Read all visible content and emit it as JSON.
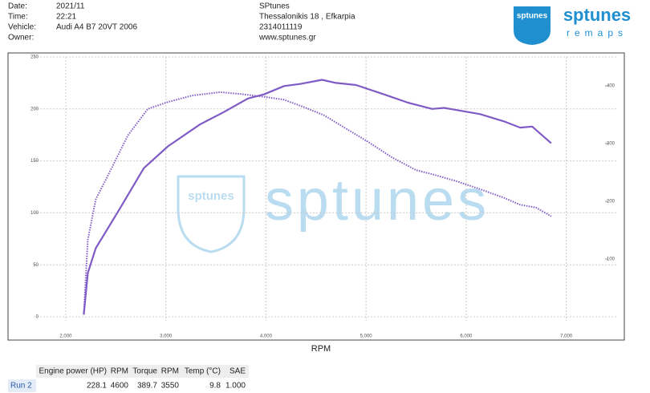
{
  "header": {
    "labels": [
      "Date:",
      "Time:",
      "Vehicle:",
      "Owner:"
    ],
    "values": [
      "2021/11",
      "22:21",
      "Audi A4 B7 20VT 2006"
    ],
    "company": [
      "SPtunes",
      "Thessalonikis 18 , Efkarpia",
      "2314011119",
      "www.sptunes.gr"
    ]
  },
  "logo": {
    "name": "sptunes",
    "tagline": "remaps"
  },
  "chart_data": {
    "type": "line",
    "x_label": "RPM",
    "xlim": [
      1680,
      7500
    ],
    "xticks": [
      {
        "value": 2000,
        "label": "2,000"
      },
      {
        "value": 3000,
        "label": "3,000"
      },
      {
        "value": 4000,
        "label": "4,000"
      },
      {
        "value": 5000,
        "label": "5,000"
      },
      {
        "value": 6000,
        "label": "6,000"
      },
      {
        "value": 7000,
        "label": "7,000"
      }
    ],
    "ylim": [
      0,
      250
    ],
    "yticks": [
      0,
      50,
      100,
      150,
      200,
      250
    ],
    "y2lim": [
      0,
      450
    ],
    "y2ticks": [
      100,
      200,
      300,
      400
    ],
    "grid": true,
    "series": [
      {
        "color": "#7f5bc6",
        "style": "solid",
        "x": [
          2180,
          2220,
          2300,
          2540,
          2780,
          3020,
          3340,
          3580,
          3820,
          3980,
          4180,
          4340,
          4560,
          4700,
          4900,
          5180,
          5420,
          5660,
          5780,
          5900,
          6140,
          6380,
          6540,
          6660,
          6850
        ],
        "values": [
          2,
          42,
          66,
          104,
          143,
          164,
          185,
          197,
          210,
          214,
          222,
          224,
          228,
          225,
          223,
          214,
          206,
          200,
          201,
          199,
          195,
          188,
          182,
          183,
          167
        ]
      },
      {
        "color": "#7f5bc6",
        "style": "dotted",
        "axis": "y2",
        "x": [
          2180,
          2220,
          2300,
          2460,
          2620,
          2820,
          3020,
          3260,
          3540,
          3740,
          3980,
          4180,
          4380,
          4580,
          4780,
          5020,
          5260,
          5500,
          5660,
          5900,
          6140,
          6380,
          6540,
          6700,
          6850
        ],
        "values": [
          4,
          133,
          203,
          258,
          314,
          360,
          372,
          383,
          389,
          386,
          381,
          376,
          363,
          349,
          328,
          303,
          276,
          254,
          247,
          235,
          221,
          206,
          194,
          189,
          174
        ]
      }
    ]
  },
  "table": {
    "headers": [
      "Engine power (HP)",
      "RPM",
      "Torque",
      "RPM",
      "Temp (°C)",
      "SAE"
    ],
    "rows": [
      [
        "Run 2",
        "228.1",
        "4600",
        "389.7",
        "3550",
        "9.8",
        "1.000"
      ]
    ]
  }
}
